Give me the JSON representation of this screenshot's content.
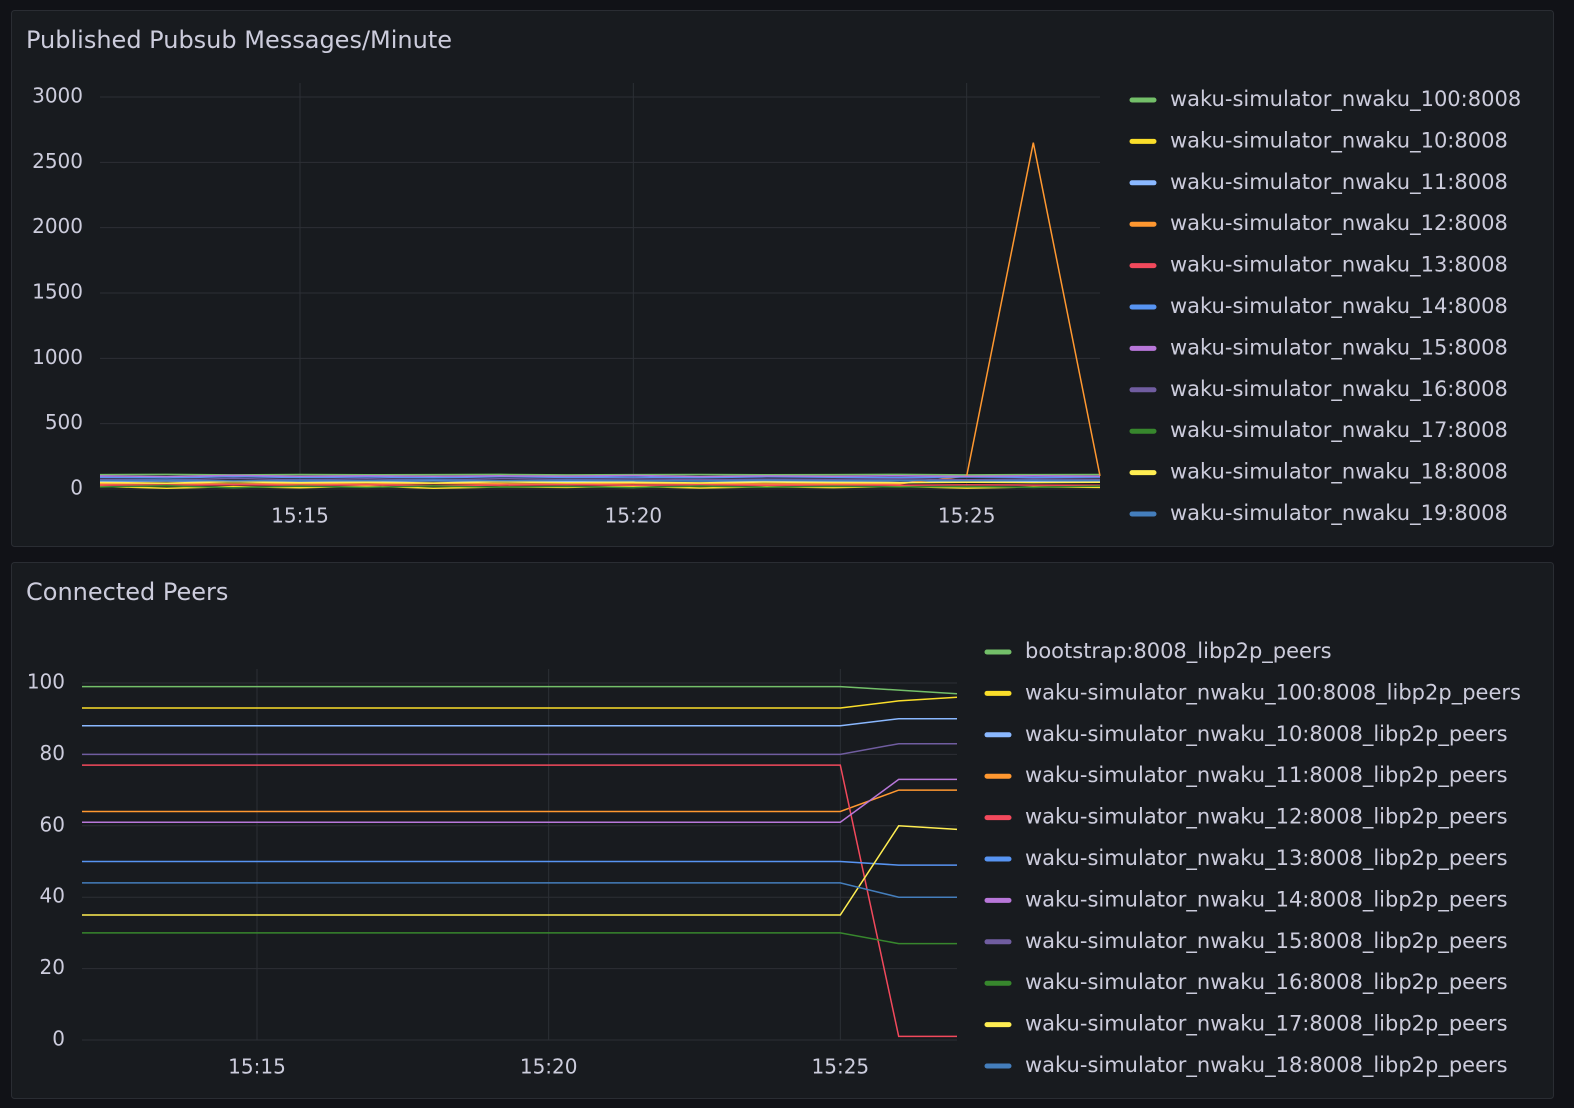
{
  "chart_data": [
    {
      "type": "line",
      "title": "Published Pubsub Messages/Minute",
      "x": [
        "15:12",
        "15:13",
        "15:14",
        "15:15",
        "15:16",
        "15:17",
        "15:18",
        "15:19",
        "15:20",
        "15:21",
        "15:22",
        "15:23",
        "15:24",
        "15:25",
        "15:26",
        "15:27"
      ],
      "xlim": [
        "15:12",
        "15:27"
      ],
      "xticks": [
        "15:15",
        "15:20",
        "15:25"
      ],
      "ylim": [
        0,
        3000
      ],
      "yticks": [
        0,
        500,
        1000,
        1500,
        2000,
        2500,
        3000
      ],
      "grid": true,
      "legend": "right",
      "series": [
        {
          "name": "waku-simulator_nwaku_100:8008",
          "color": "#73bf69",
          "values": [
            110,
            112,
            108,
            111,
            109,
            110,
            112,
            108,
            110,
            111,
            109,
            110,
            112,
            108,
            110,
            111
          ]
        },
        {
          "name": "waku-simulator_nwaku_10:8008",
          "color": "#fade2a",
          "values": [
            20,
            5,
            18,
            10,
            22,
            6,
            15,
            12,
            20,
            8,
            17,
            11,
            19,
            7,
            16,
            12
          ]
        },
        {
          "name": "waku-simulator_nwaku_11:8008",
          "color": "#8ab8ff",
          "values": [
            60,
            62,
            58,
            61,
            59,
            63,
            60,
            58,
            62,
            61,
            59,
            60,
            63,
            57,
            60,
            61
          ]
        },
        {
          "name": "waku-simulator_nwaku_12:8008",
          "color": "#ff9830",
          "values": [
            40,
            42,
            38,
            41,
            39,
            43,
            40,
            38,
            42,
            41,
            39,
            40,
            40,
            100,
            2650,
            100
          ]
        },
        {
          "name": "waku-simulator_nwaku_13:8008",
          "color": "#f2495c",
          "values": [
            30,
            28,
            33,
            29,
            31,
            27,
            30,
            32,
            29,
            31,
            28,
            30,
            29,
            31,
            30,
            28
          ]
        },
        {
          "name": "waku-simulator_nwaku_14:8008",
          "color": "#5794f2",
          "values": [
            90,
            85,
            95,
            88,
            92,
            86,
            94,
            89,
            91,
            87,
            93,
            90,
            88,
            92,
            89,
            91
          ]
        },
        {
          "name": "waku-simulator_nwaku_15:8008",
          "color": "#b877d9",
          "values": [
            100,
            96,
            104,
            98,
            102,
            97,
            101,
            99,
            103,
            96,
            100,
            98,
            102,
            97,
            101,
            99
          ]
        },
        {
          "name": "waku-simulator_nwaku_16:8008",
          "color": "#705da0",
          "values": [
            75,
            70,
            80,
            72,
            78,
            71,
            79,
            74,
            77,
            73,
            76,
            75,
            78,
            72,
            77,
            74
          ]
        },
        {
          "name": "waku-simulator_nwaku_17:8008",
          "color": "#37872d",
          "values": [
            15,
            25,
            10,
            22,
            12,
            24,
            14,
            20,
            11,
            23,
            13,
            21,
            15,
            19,
            12,
            22
          ]
        },
        {
          "name": "waku-simulator_nwaku_18:8008",
          "color": "#ffee52",
          "values": [
            50,
            45,
            55,
            48,
            52,
            46,
            54,
            49,
            51,
            47,
            53,
            50,
            48,
            52,
            49,
            51
          ]
        },
        {
          "name": "waku-simulator_nwaku_19:8008",
          "color": "#447ebc",
          "values": [
            65,
            68,
            62,
            66,
            64,
            69,
            63,
            67,
            65,
            62,
            68,
            64,
            66,
            63,
            67,
            65
          ]
        }
      ]
    },
    {
      "type": "line",
      "title": "Connected Peers",
      "x": [
        "15:12",
        "15:13",
        "15:14",
        "15:15",
        "15:16",
        "15:17",
        "15:18",
        "15:19",
        "15:20",
        "15:21",
        "15:22",
        "15:23",
        "15:24",
        "15:25",
        "15:26",
        "15:27"
      ],
      "xlim": [
        "15:12",
        "15:27"
      ],
      "xticks": [
        "15:15",
        "15:20",
        "15:25"
      ],
      "ylim": [
        0,
        100
      ],
      "yticks": [
        0,
        20,
        40,
        60,
        80,
        100
      ],
      "grid": true,
      "legend": "right",
      "series": [
        {
          "name": "bootstrap:8008_libp2p_peers",
          "color": "#73bf69",
          "values": [
            99,
            99,
            99,
            99,
            99,
            99,
            99,
            99,
            99,
            99,
            99,
            99,
            99,
            99,
            98,
            97
          ]
        },
        {
          "name": "waku-simulator_nwaku_100:8008_libp2p_peers",
          "color": "#fade2a",
          "values": [
            93,
            93,
            93,
            93,
            93,
            93,
            93,
            93,
            93,
            93,
            93,
            93,
            93,
            93,
            95,
            96
          ]
        },
        {
          "name": "waku-simulator_nwaku_10:8008_libp2p_peers",
          "color": "#8ab8ff",
          "values": [
            88,
            88,
            88,
            88,
            88,
            88,
            88,
            88,
            88,
            88,
            88,
            88,
            88,
            88,
            90,
            90
          ]
        },
        {
          "name": "waku-simulator_nwaku_11:8008_libp2p_peers",
          "color": "#ff9830",
          "values": [
            64,
            64,
            64,
            64,
            64,
            64,
            64,
            64,
            64,
            64,
            64,
            64,
            64,
            64,
            70,
            70
          ]
        },
        {
          "name": "waku-simulator_nwaku_12:8008_libp2p_peers",
          "color": "#f2495c",
          "values": [
            77,
            77,
            77,
            77,
            77,
            77,
            77,
            77,
            77,
            77,
            77,
            77,
            77,
            77,
            1,
            1
          ]
        },
        {
          "name": "waku-simulator_nwaku_13:8008_libp2p_peers",
          "color": "#5794f2",
          "values": [
            50,
            50,
            50,
            50,
            50,
            50,
            50,
            50,
            50,
            50,
            50,
            50,
            50,
            50,
            49,
            49
          ]
        },
        {
          "name": "waku-simulator_nwaku_14:8008_libp2p_peers",
          "color": "#b877d9",
          "values": [
            61,
            61,
            61,
            61,
            61,
            61,
            61,
            61,
            61,
            61,
            61,
            61,
            61,
            61,
            73,
            73
          ]
        },
        {
          "name": "waku-simulator_nwaku_15:8008_libp2p_peers",
          "color": "#705da0",
          "values": [
            80,
            80,
            80,
            80,
            80,
            80,
            80,
            80,
            80,
            80,
            80,
            80,
            80,
            80,
            83,
            83
          ]
        },
        {
          "name": "waku-simulator_nwaku_16:8008_libp2p_peers",
          "color": "#37872d",
          "values": [
            30,
            30,
            30,
            30,
            30,
            30,
            30,
            30,
            30,
            30,
            30,
            30,
            30,
            30,
            27,
            27
          ]
        },
        {
          "name": "waku-simulator_nwaku_17:8008_libp2p_peers",
          "color": "#ffee52",
          "values": [
            35,
            35,
            35,
            35,
            35,
            35,
            35,
            35,
            35,
            35,
            35,
            35,
            35,
            35,
            60,
            59
          ]
        },
        {
          "name": "waku-simulator_nwaku_18:8008_libp2p_peers",
          "color": "#447ebc",
          "values": [
            44,
            44,
            44,
            44,
            44,
            44,
            44,
            44,
            44,
            44,
            44,
            44,
            44,
            44,
            40,
            40
          ]
        }
      ]
    }
  ]
}
